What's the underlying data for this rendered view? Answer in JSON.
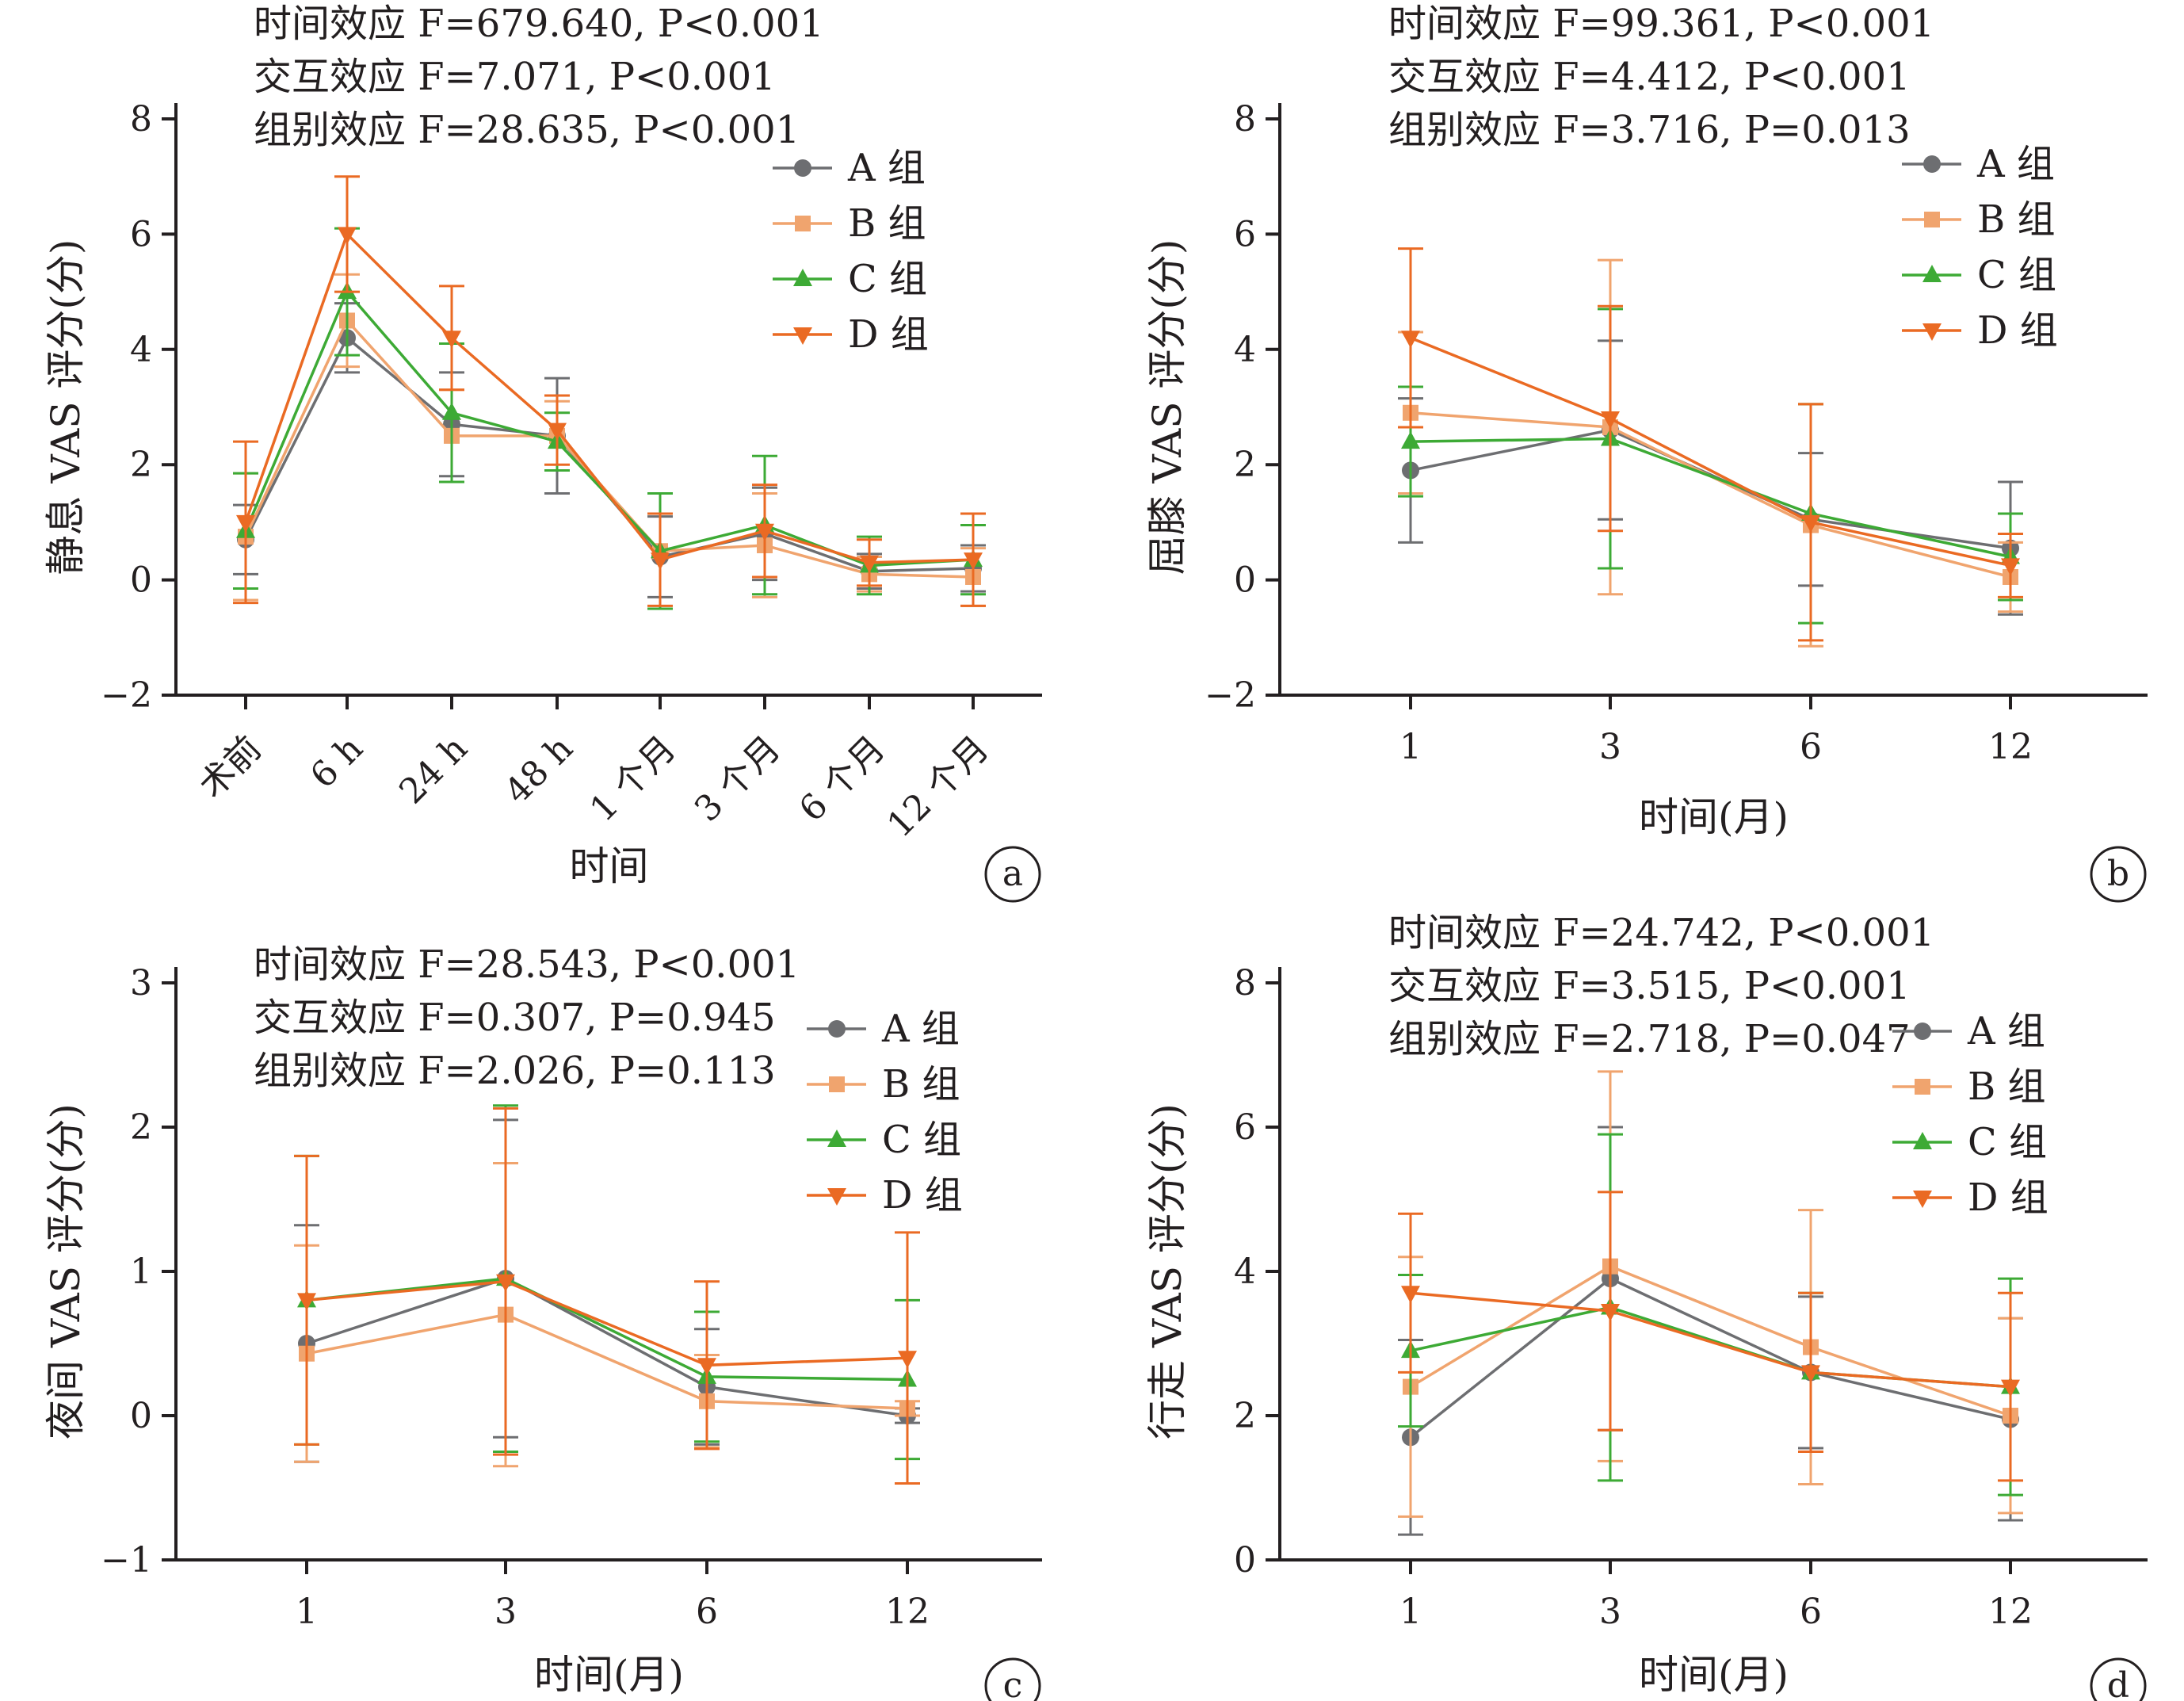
{
  "colors": {
    "A": "#6d6e71",
    "B": "#f0a46e",
    "C": "#3daa35",
    "D": "#ea6a23"
  },
  "legend": [
    "A 组",
    "B 组",
    "C 组",
    "D 组"
  ],
  "chart_data": [
    {
      "id": "a",
      "type": "line",
      "badge": "a",
      "ylabel": "静息 VAS 评分(分)",
      "xlabel": "时间",
      "ylim": [
        -2,
        8
      ],
      "yticks": [
        "−2",
        "0",
        "2",
        "4",
        "6",
        "8"
      ],
      "categories": [
        "术前",
        "6 h",
        "24 h",
        "48 h",
        "1 个月",
        "3 个月",
        "6 个月",
        "12 个月"
      ],
      "stats": [
        "时间效应 F=679.640, P<0.001",
        "交互效应 F=7.071, P<0.001",
        "组别效应 F=28.635, P<0.001"
      ],
      "series": [
        {
          "name": "A 组",
          "values": [
            0.7,
            4.2,
            2.7,
            2.5,
            0.4,
            0.8,
            0.15,
            0.2
          ],
          "err": [
            0.6,
            0.6,
            0.9,
            1.0,
            0.7,
            0.8,
            0.3,
            0.4
          ]
        },
        {
          "name": "B 组",
          "values": [
            0.75,
            4.5,
            2.5,
            2.5,
            0.5,
            0.6,
            0.1,
            0.05
          ],
          "err": [
            1.1,
            0.8,
            0.8,
            0.6,
            1.0,
            0.9,
            0.3,
            0.5
          ]
        },
        {
          "name": "C 组",
          "values": [
            0.85,
            5.0,
            2.9,
            2.4,
            0.5,
            0.95,
            0.25,
            0.35
          ],
          "err": [
            1.0,
            1.1,
            1.2,
            0.5,
            1.0,
            1.2,
            0.5,
            0.6
          ]
        },
        {
          "name": "D 组",
          "values": [
            1.0,
            6.0,
            4.2,
            2.6,
            0.35,
            0.85,
            0.3,
            0.35
          ],
          "err": [
            1.4,
            1.0,
            0.9,
            0.6,
            0.8,
            0.8,
            0.4,
            0.8
          ]
        }
      ]
    },
    {
      "id": "b",
      "type": "line",
      "badge": "b",
      "ylabel": "屈膝 VAS 评分(分)",
      "xlabel": "时间(月)",
      "ylim": [
        -2,
        8
      ],
      "yticks": [
        "−2",
        "0",
        "2",
        "4",
        "6",
        "8"
      ],
      "categories": [
        "1",
        "3",
        "6",
        "12"
      ],
      "stats": [
        "时间效应 F=99.361, P<0.001",
        "交互效应 F=4.412, P<0.001",
        "组别效应 F=3.716, P=0.013"
      ],
      "series": [
        {
          "name": "A 组",
          "values": [
            1.9,
            2.6,
            1.05,
            0.55
          ],
          "err": [
            1.25,
            1.55,
            1.15,
            1.15
          ]
        },
        {
          "name": "B 组",
          "values": [
            2.9,
            2.65,
            0.95,
            0.05
          ],
          "err": [
            1.4,
            2.9,
            2.1,
            0.6
          ]
        },
        {
          "name": "C 组",
          "values": [
            2.4,
            2.45,
            1.15,
            0.4
          ],
          "err": [
            0.95,
            2.25,
            1.9,
            0.75
          ]
        },
        {
          "name": "D 组",
          "values": [
            4.2,
            2.8,
            1.0,
            0.25
          ],
          "err": [
            1.55,
            1.95,
            2.05,
            0.55
          ]
        }
      ]
    },
    {
      "id": "c",
      "type": "line",
      "badge": "c",
      "ylabel": "夜间 VAS 评分(分)",
      "xlabel": "时间(月)",
      "ylim": [
        -1,
        3
      ],
      "yticks": [
        "−1",
        "0",
        "1",
        "2",
        "3"
      ],
      "categories": [
        "1",
        "3",
        "6",
        "12"
      ],
      "stats": [
        "时间效应 F=28.543, P<0.001",
        "交互效应 F=0.307, P=0.945",
        "组别效应 F=2.026, P=0.113"
      ],
      "series": [
        {
          "name": "A 组",
          "values": [
            0.5,
            0.95,
            0.2,
            0.0
          ],
          "err": [
            0.82,
            1.1,
            0.4,
            0.05
          ]
        },
        {
          "name": "B 组",
          "values": [
            0.43,
            0.7,
            0.1,
            0.05
          ],
          "err": [
            0.75,
            1.05,
            0.32,
            0.05
          ]
        },
        {
          "name": "C 组",
          "values": [
            0.8,
            0.95,
            0.27,
            0.25
          ],
          "err": [
            1.0,
            1.2,
            0.45,
            0.55
          ]
        },
        {
          "name": "D 组",
          "values": [
            0.8,
            0.93,
            0.35,
            0.4
          ],
          "err": [
            1.0,
            1.2,
            0.58,
            0.87
          ]
        }
      ]
    },
    {
      "id": "d",
      "type": "line",
      "badge": "d",
      "ylabel": "行走 VAS 评分(分)",
      "xlabel": "时间(月)",
      "ylim": [
        0,
        8
      ],
      "yticks": [
        "0",
        "2",
        "4",
        "6",
        "8"
      ],
      "categories": [
        "1",
        "3",
        "6",
        "12"
      ],
      "stats": [
        "时间效应 F=24.742, P<0.001",
        "交互效应 F=3.515, P<0.001",
        "组别效应 F=2.718, P=0.047"
      ],
      "series": [
        {
          "name": "A 组",
          "values": [
            1.7,
            3.9,
            2.6,
            1.95
          ],
          "err": [
            1.35,
            2.1,
            1.05,
            1.4
          ]
        },
        {
          "name": "B 组",
          "values": [
            2.4,
            4.07,
            2.95,
            2.0
          ],
          "err": [
            1.8,
            2.7,
            1.9,
            1.35
          ]
        },
        {
          "name": "C 组",
          "values": [
            2.9,
            3.5,
            2.6,
            2.4
          ],
          "err": [
            1.05,
            2.4,
            1.1,
            1.5
          ]
        },
        {
          "name": "D 组",
          "values": [
            3.7,
            3.45,
            2.6,
            2.4
          ],
          "err": [
            1.1,
            1.65,
            1.1,
            1.3
          ]
        }
      ]
    }
  ]
}
